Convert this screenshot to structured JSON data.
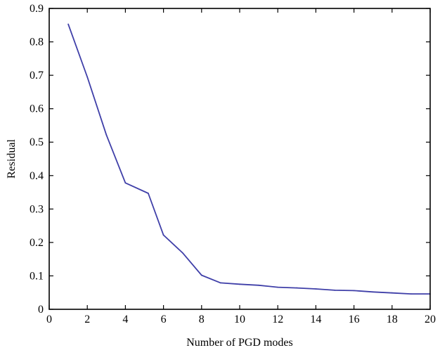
{
  "chart_data": {
    "type": "line",
    "title": "",
    "xlabel": "Number of PGD modes",
    "ylabel": "Residual",
    "xlim": [
      0,
      20
    ],
    "ylim": [
      0,
      0.9
    ],
    "xticks": [
      0,
      2,
      4,
      6,
      8,
      10,
      12,
      14,
      16,
      18,
      20
    ],
    "yticks": [
      0,
      0.1,
      0.2,
      0.3,
      0.4,
      0.5,
      0.6,
      0.7,
      0.8,
      0.9
    ],
    "xtick_labels": [
      "0",
      "2",
      "4",
      "6",
      "8",
      "10",
      "12",
      "14",
      "16",
      "18",
      "20"
    ],
    "ytick_labels": [
      "0",
      "0.1",
      "0.2",
      "0.3",
      "0.4",
      "0.5",
      "0.6",
      "0.7",
      "0.8",
      "0.9"
    ],
    "grid": false,
    "series": [
      {
        "color": "#3f3fa8",
        "x": [
          1,
          2,
          3,
          4,
          5.2,
          6,
          7,
          8,
          9,
          10,
          11,
          12,
          13,
          14,
          15,
          16,
          17,
          18,
          19,
          20
        ],
        "y": [
          0.853,
          0.695,
          0.522,
          0.378,
          0.347,
          0.222,
          0.169,
          0.102,
          0.079,
          0.075,
          0.072,
          0.066,
          0.064,
          0.061,
          0.057,
          0.056,
          0.052,
          0.049,
          0.046,
          0.046
        ]
      }
    ]
  }
}
